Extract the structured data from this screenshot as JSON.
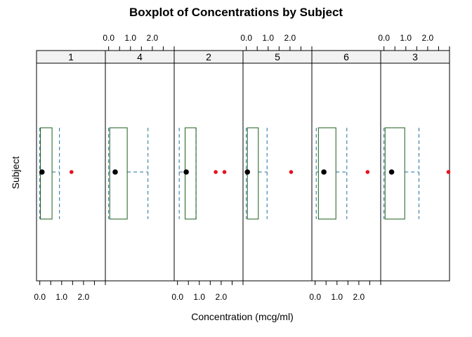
{
  "chart_data": {
    "type": "boxplot",
    "title": "Boxplot of Concentrations by Subject",
    "xlabel": "Concentration (mcg/ml)",
    "ylabel": "Subject",
    "xlim": [
      -0.15,
      3.0
    ],
    "tick_values": [
      0,
      0.5,
      1.0,
      1.5,
      2.0,
      2.5,
      3.0
    ],
    "tick_labels": [
      {
        "value": 0,
        "label": "0.0"
      },
      {
        "value": 1,
        "label": "1.0"
      },
      {
        "value": 2,
        "label": "2.0"
      }
    ],
    "panels": [
      {
        "subject": "1",
        "whisker_low": 0.0,
        "q1": 0.03,
        "median": 0.1,
        "q3": 0.56,
        "whisker_high": 0.9,
        "outliers": [
          1.45
        ]
      },
      {
        "subject": "4",
        "whisker_low": 0.0,
        "q1": 0.05,
        "median": 0.3,
        "q3": 0.85,
        "whisker_high": 1.8,
        "outliers": []
      },
      {
        "subject": "2",
        "whisker_low": 0.08,
        "q1": 0.35,
        "median": 0.4,
        "q3": 0.85,
        "whisker_high": 0.85,
        "outliers": [
          1.75,
          2.15
        ]
      },
      {
        "subject": "5",
        "whisker_low": 0.0,
        "q1": 0.05,
        "median": 0.05,
        "q3": 0.55,
        "whisker_high": 0.95,
        "outliers": [
          2.05
        ]
      },
      {
        "subject": "6",
        "whisker_low": 0.05,
        "q1": 0.15,
        "median": 0.4,
        "q3": 0.95,
        "whisker_high": 1.45,
        "outliers": [
          2.4
        ]
      },
      {
        "subject": "3",
        "whisker_low": 0.0,
        "q1": 0.05,
        "median": 0.35,
        "q3": 0.95,
        "whisker_high": 1.6,
        "outliers": [
          2.95
        ]
      }
    ],
    "bottom_tick_panels": [
      0,
      2,
      4
    ],
    "top_tick_panels": [
      1,
      3,
      5
    ],
    "colors": {
      "box": "#1a5e1a",
      "whisker": "#1f6f9a",
      "median": "#000000",
      "outlier": "#e8101f",
      "strip_bg": "#f2f2f2",
      "frame": "#000000"
    }
  }
}
